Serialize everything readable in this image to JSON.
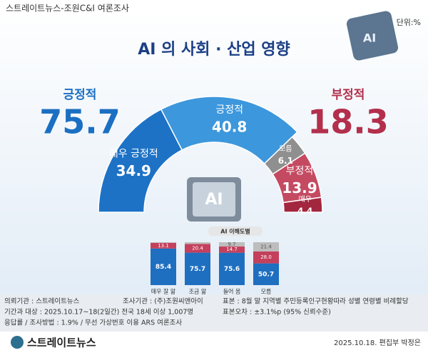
{
  "header": {
    "brand": "스트레이트뉴스-조원C&I 여론조사",
    "unit": "단위:%",
    "chip_label": "AI"
  },
  "chart_data": [
    {
      "type": "semi-donut",
      "title": "AI 의 사회 · 산업 영향",
      "summary": [
        {
          "label": "긍정적",
          "value": 75.7,
          "color": "#1b6fc2"
        },
        {
          "label": "부정적",
          "value": 18.3,
          "color": "#b32f4c"
        }
      ],
      "categories": [
        "매우 긍정적",
        "긍정적",
        "모름",
        "부정적",
        "매우"
      ],
      "values": [
        34.9,
        40.8,
        6.1,
        13.9,
        4.4
      ],
      "colors": [
        "#1d72c6",
        "#3d97dc",
        "#8f8f8f",
        "#c44a62",
        "#a3263f"
      ]
    },
    {
      "type": "stacked-bar",
      "title": "AI 이해도별",
      "categories": [
        "매우 잘 앎",
        "조금 앎",
        "들어 봄",
        "모름"
      ],
      "series": [
        {
          "color": "#1f6fc0",
          "values": [
            85.4,
            75.7,
            75.6,
            50.7
          ]
        },
        {
          "color": "#c4405c",
          "values": [
            13.1,
            20.4,
            14.7,
            28.0
          ],
          "value_labels": [
            "13.1",
            "20.4",
            "14.7",
            "28.0"
          ]
        },
        {
          "color": "#bdbdbd",
          "values": [
            1.5,
            3.9,
            9.7,
            21.4
          ],
          "value_labels": [
            null,
            null,
            "9.7",
            "21.4"
          ]
        }
      ]
    }
  ],
  "footer": {
    "lines": [
      [
        "의뢰기관 : 스트레이트뉴스",
        "조사기관 : (주)조원씨앤아이",
        "표본 : 8월 말 지역별 주민등록인구현황따라 성별 연령별 비례할당"
      ],
      [
        "기간과 대상 : 2025.10.17~18(2일간) 전국 18세 이상 1,007명",
        "표본오차 : ±3.1%p (95% 신뢰수준)"
      ],
      [
        "응답률 / 조사방법 : 1.9% / 무선 가상번호 이용 ARS 여론조사"
      ]
    ],
    "logo": "스트레이트뉴스",
    "credit": "2025.10.18. 편집부 박정은"
  }
}
